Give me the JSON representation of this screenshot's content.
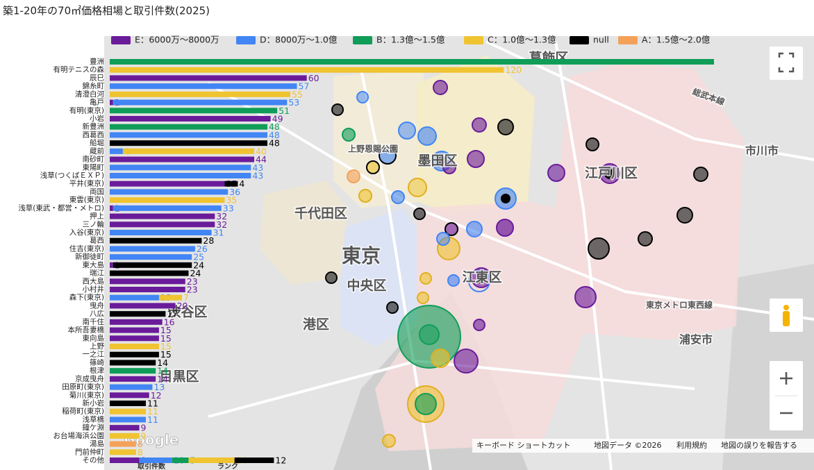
{
  "chart_data": {
    "type": "bar",
    "orientation": "horizontal",
    "title": "築1-20年の70㎡価格相場と取引件数(2025)",
    "x_label": "取引件数",
    "legend_title": "ランク",
    "categories": [
      "豊洲",
      "有明テニスの森",
      "辰巳",
      "錦糸町",
      "清澄白河",
      "亀戸",
      "有明(東京)",
      "小岩",
      "新豊洲",
      "西葛西",
      "船堀",
      "蔵前",
      "南砂町",
      "東陽町",
      "浅草(つくばＥＸＰ)",
      "平井(東京)",
      "両国",
      "東雲(東京)",
      "浅草(東武・都営・メトロ)",
      "押上",
      "三ノ輪",
      "入谷(東京)",
      "葛西",
      "住吉(東京)",
      "新御徒町",
      "東大島",
      "瑞江",
      "西大島",
      "小村井",
      "森下(東京)",
      "曳舟",
      "八広",
      "南千住",
      "本所吾妻橋",
      "東向島",
      "上野",
      "一之江",
      "篠崎",
      "根津",
      "京成曳舟",
      "田原町(東京)",
      "菊川(東京)",
      "新小岩",
      "稲荷町(東京)",
      "浅草橋",
      "鐘ケ淵",
      "お台場海浜公園",
      "湯島",
      "門前仲町",
      "その他"
    ],
    "series": [
      {
        "name": "E：6000万～8000万",
        "color": "#6a1b9a",
        "values": [
          null,
          null,
          60,
          null,
          null,
          1,
          null,
          49,
          null,
          null,
          null,
          null,
          44,
          null,
          null,
          35,
          null,
          null,
          1,
          32,
          32,
          null,
          null,
          null,
          null,
          1,
          null,
          23,
          23,
          null,
          20,
          null,
          16,
          15,
          15,
          null,
          null,
          null,
          null,
          14,
          null,
          12,
          null,
          null,
          null,
          9,
          null,
          null,
          null,
          9
        ]
      },
      {
        "name": "D：8000万～1.0億",
        "color": "#4285f4",
        "values": [
          null,
          null,
          null,
          57,
          null,
          53,
          null,
          null,
          null,
          48,
          null,
          4,
          null,
          43,
          43,
          null,
          36,
          null,
          33,
          null,
          null,
          31,
          null,
          26,
          25,
          null,
          null,
          null,
          null,
          15,
          null,
          null,
          null,
          null,
          null,
          null,
          null,
          null,
          null,
          null,
          13,
          null,
          null,
          null,
          11,
          null,
          null,
          null,
          null,
          10
        ]
      },
      {
        "name": "B：1.3億～1.5億",
        "color": "#0f9d58",
        "values": [
          184,
          null,
          null,
          null,
          null,
          null,
          51,
          null,
          48,
          null,
          null,
          null,
          null,
          null,
          null,
          null,
          null,
          null,
          null,
          null,
          null,
          null,
          null,
          null,
          null,
          null,
          null,
          null,
          null,
          null,
          null,
          null,
          null,
          null,
          null,
          null,
          null,
          null,
          14,
          null,
          null,
          null,
          null,
          null,
          null,
          null,
          null,
          null,
          null,
          5
        ]
      },
      {
        "name": "C：1.0億～1.3億",
        "color": "#f0c330",
        "values": [
          null,
          120,
          null,
          null,
          55,
          null,
          null,
          null,
          null,
          null,
          null,
          40,
          null,
          null,
          null,
          null,
          null,
          35,
          null,
          null,
          null,
          null,
          null,
          null,
          null,
          null,
          null,
          null,
          null,
          7,
          null,
          null,
          null,
          null,
          null,
          15,
          null,
          null,
          null,
          null,
          null,
          null,
          null,
          11,
          null,
          null,
          9,
          null,
          8,
          14
        ]
      },
      {
        "name": "null",
        "color": "#000000",
        "values": [
          null,
          null,
          null,
          null,
          null,
          null,
          null,
          null,
          null,
          null,
          48,
          null,
          null,
          null,
          null,
          4,
          null,
          null,
          null,
          null,
          null,
          null,
          28,
          null,
          null,
          24,
          24,
          null,
          null,
          null,
          null,
          17,
          null,
          null,
          null,
          null,
          15,
          14,
          null,
          null,
          null,
          null,
          11,
          null,
          null,
          null,
          null,
          null,
          null,
          12
        ]
      },
      {
        "name": "A：1.5億～2.0億",
        "color": "#f4a15a",
        "values": [
          null,
          null,
          null,
          null,
          null,
          null,
          null,
          null,
          null,
          null,
          null,
          null,
          null,
          null,
          null,
          null,
          null,
          null,
          null,
          null,
          null,
          null,
          null,
          null,
          null,
          null,
          null,
          null,
          null,
          null,
          null,
          null,
          null,
          null,
          null,
          null,
          null,
          null,
          null,
          null,
          null,
          null,
          null,
          null,
          null,
          null,
          null,
          8,
          null,
          null
        ]
      }
    ],
    "xlim": [
      0,
      184
    ]
  },
  "map": {
    "labels": [
      "葛飾区",
      "墨田区",
      "江戸川区",
      "千代田区",
      "東京",
      "中央区",
      "江東区",
      "港区",
      "渋谷区",
      "目黒区",
      "市川市",
      "浦安市",
      "上野恩賜公園",
      "総武本線",
      "東京メトロ東西線"
    ],
    "footer": [
      "キーボード ショートカット",
      "地図データ ©2026",
      "利用規約",
      "地図の誤りを報告する"
    ],
    "logo": "Google"
  }
}
